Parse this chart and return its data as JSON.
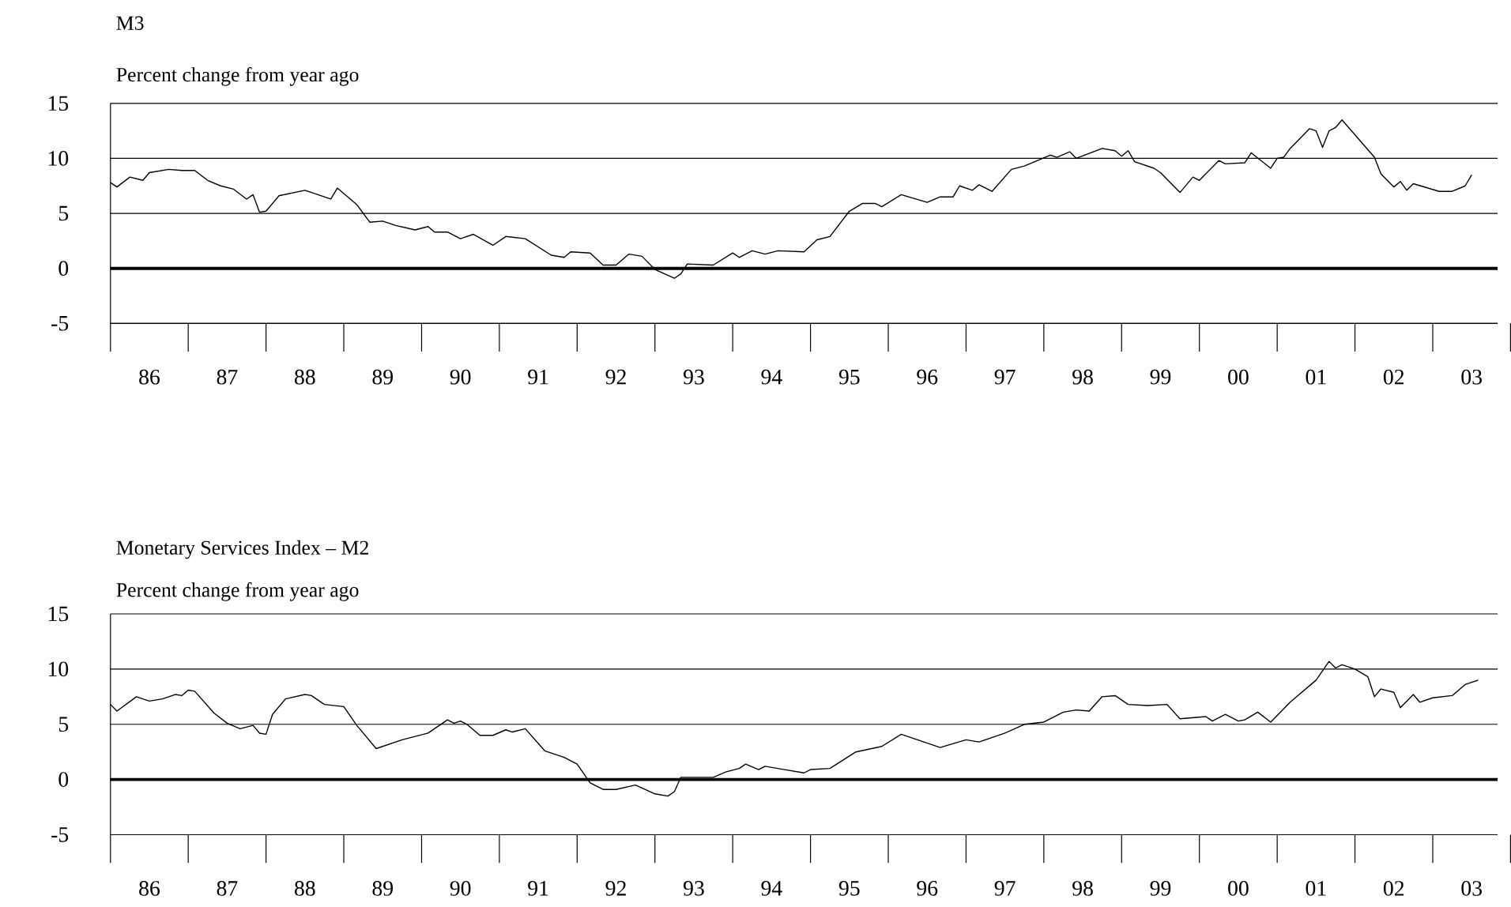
{
  "chart_data": [
    {
      "type": "line",
      "title": "M3",
      "subtitle": "Percent change from year ago",
      "color": "#000000",
      "grid": "y",
      "marker": "none",
      "line_style": "solid",
      "xlim": [
        "1986-01",
        "2003-11"
      ],
      "ylim": [
        -5,
        15
      ],
      "yticks": [
        -5,
        0,
        5,
        10,
        15
      ],
      "xticks": [
        {
          "value": "1986-07",
          "label": "86"
        },
        {
          "value": "1987-07",
          "label": "87"
        },
        {
          "value": "1988-07",
          "label": "88"
        },
        {
          "value": "1989-07",
          "label": "89"
        },
        {
          "value": "1990-07",
          "label": "90"
        },
        {
          "value": "1991-07",
          "label": "91"
        },
        {
          "value": "1992-07",
          "label": "92"
        },
        {
          "value": "1993-07",
          "label": "93"
        },
        {
          "value": "1994-07",
          "label": "94"
        },
        {
          "value": "1995-07",
          "label": "95"
        },
        {
          "value": "1996-07",
          "label": "96"
        },
        {
          "value": "1997-07",
          "label": "97"
        },
        {
          "value": "1998-07",
          "label": "98"
        },
        {
          "value": "1999-07",
          "label": "99"
        },
        {
          "value": "2000-07",
          "label": "00"
        },
        {
          "value": "2001-07",
          "label": "01"
        },
        {
          "value": "2002-07",
          "label": "02"
        },
        {
          "value": "2003-07",
          "label": "03"
        }
      ],
      "ref_lines": [
        {
          "axis": "y",
          "value": 0
        }
      ],
      "x": [
        "1986-01",
        "1986-02",
        "1986-04",
        "1986-06",
        "1986-07",
        "1986-10",
        "1986-12",
        "1987-02",
        "1987-04",
        "1987-06",
        "1987-08",
        "1987-10",
        "1987-11",
        "1987-12",
        "1988-01",
        "1988-03",
        "1988-07",
        "1988-11",
        "1988-12",
        "1989-03",
        "1989-05",
        "1989-07",
        "1989-09",
        "1989-12",
        "1990-02",
        "1990-03",
        "1990-05",
        "1990-07",
        "1990-09",
        "1990-12",
        "1991-02",
        "1991-05",
        "1991-09",
        "1991-11",
        "1991-12",
        "1992-03",
        "1992-05",
        "1992-07",
        "1992-09",
        "1992-11",
        "1993-01",
        "1993-04",
        "1993-05",
        "1993-06",
        "1993-10",
        "1994-01",
        "1994-02",
        "1994-04",
        "1994-06",
        "1994-08",
        "1994-12",
        "1995-02",
        "1995-04",
        "1995-07",
        "1995-09",
        "1995-11",
        "1995-12",
        "1996-03",
        "1996-07",
        "1996-09",
        "1996-11",
        "1996-12",
        "1997-02",
        "1997-03",
        "1997-05",
        "1997-08",
        "1997-10",
        "1998-02",
        "1998-03",
        "1998-05",
        "1998-06",
        "1998-10",
        "1998-12",
        "1999-01",
        "1999-02",
        "1999-03",
        "1999-06",
        "1999-07",
        "1999-10",
        "1999-12",
        "2000-01",
        "2000-04",
        "2000-05",
        "2000-08",
        "2000-09",
        "2000-12",
        "2001-01",
        "2001-02",
        "2001-03",
        "2001-06",
        "2001-07",
        "2001-08",
        "2001-09",
        "2001-10",
        "2001-11",
        "2002-04",
        "2002-05",
        "2002-07",
        "2002-08",
        "2002-09",
        "2002-10",
        "2003-02",
        "2003-04",
        "2003-06",
        "2003-07"
      ],
      "values": [
        7.8,
        7.4,
        8.3,
        8.0,
        8.7,
        9.0,
        8.9,
        8.9,
        8.0,
        7.5,
        7.2,
        6.3,
        6.7,
        5.1,
        5.2,
        6.6,
        7.1,
        6.3,
        7.3,
        5.8,
        4.2,
        4.3,
        3.9,
        3.5,
        3.8,
        3.3,
        3.3,
        2.7,
        3.1,
        2.1,
        2.9,
        2.7,
        1.2,
        1.0,
        1.5,
        1.4,
        0.3,
        0.3,
        1.3,
        1.1,
        -0.1,
        -0.9,
        -0.5,
        0.4,
        0.3,
        1.4,
        1.0,
        1.6,
        1.3,
        1.6,
        1.5,
        2.6,
        2.9,
        5.2,
        5.9,
        5.9,
        5.6,
        6.7,
        6.0,
        6.5,
        6.5,
        7.5,
        7.1,
        7.6,
        7.0,
        9.0,
        9.3,
        10.3,
        10.1,
        10.6,
        10.0,
        10.9,
        10.7,
        10.2,
        10.7,
        9.7,
        9.1,
        8.7,
        6.9,
        8.3,
        8.0,
        9.8,
        9.5,
        9.6,
        10.5,
        9.1,
        10.0,
        10.1,
        10.9,
        12.7,
        12.5,
        11.0,
        12.5,
        12.8,
        13.5,
        10.1,
        8.6,
        7.4,
        7.9,
        7.1,
        7.7,
        7.0,
        7.0,
        7.5,
        8.5
      ]
    },
    {
      "type": "line",
      "title": "Monetary Services Index – M2",
      "subtitle": "Percent change from year ago",
      "color": "#000000",
      "grid": "y",
      "marker": "none",
      "line_style": "solid",
      "xlim": [
        "1986-01",
        "2003-11"
      ],
      "ylim": [
        -5,
        15
      ],
      "yticks": [
        -5,
        0,
        5,
        10,
        15
      ],
      "xticks": [
        {
          "value": "1986-07",
          "label": "86"
        },
        {
          "value": "1987-07",
          "label": "87"
        },
        {
          "value": "1988-07",
          "label": "88"
        },
        {
          "value": "1989-07",
          "label": "89"
        },
        {
          "value": "1990-07",
          "label": "90"
        },
        {
          "value": "1991-07",
          "label": "91"
        },
        {
          "value": "1992-07",
          "label": "92"
        },
        {
          "value": "1993-07",
          "label": "93"
        },
        {
          "value": "1994-07",
          "label": "94"
        },
        {
          "value": "1995-07",
          "label": "95"
        },
        {
          "value": "1996-07",
          "label": "96"
        },
        {
          "value": "1997-07",
          "label": "97"
        },
        {
          "value": "1998-07",
          "label": "98"
        },
        {
          "value": "1999-07",
          "label": "99"
        },
        {
          "value": "2000-07",
          "label": "00"
        },
        {
          "value": "2001-07",
          "label": "01"
        },
        {
          "value": "2002-07",
          "label": "02"
        },
        {
          "value": "2003-07",
          "label": "03"
        }
      ],
      "ref_lines": [
        {
          "axis": "y",
          "value": 0
        }
      ],
      "x": [
        "1986-01",
        "1986-02",
        "1986-05",
        "1986-07",
        "1986-09",
        "1986-11",
        "1986-12",
        "1987-01",
        "1987-02",
        "1987-05",
        "1987-07",
        "1987-09",
        "1987-11",
        "1987-12",
        "1988-01",
        "1988-02",
        "1988-04",
        "1988-07",
        "1988-08",
        "1988-10",
        "1989-01",
        "1989-03",
        "1989-06",
        "1989-10",
        "1990-02",
        "1990-05",
        "1990-06",
        "1990-07",
        "1990-08",
        "1990-10",
        "1990-12",
        "1991-02",
        "1991-03",
        "1991-05",
        "1991-08",
        "1991-11",
        "1992-01",
        "1992-03",
        "1992-05",
        "1992-07",
        "1992-10",
        "1993-01",
        "1993-03",
        "1993-04",
        "1993-05",
        "1993-10",
        "1993-12",
        "1994-02",
        "1994-03",
        "1994-05",
        "1994-06",
        "1994-09",
        "1994-12",
        "1995-01",
        "1995-04",
        "1995-08",
        "1995-12",
        "1996-03",
        "1996-06",
        "1996-09",
        "1997-01",
        "1997-03",
        "1997-07",
        "1997-10",
        "1998-01",
        "1998-04",
        "1998-06",
        "1998-08",
        "1998-10",
        "1998-12",
        "1999-02",
        "1999-05",
        "1999-08",
        "1999-10",
        "2000-02",
        "2000-03",
        "2000-05",
        "2000-07",
        "2000-08",
        "2000-10",
        "2000-12",
        "2001-03",
        "2001-07",
        "2001-09",
        "2001-10",
        "2001-11",
        "2002-01",
        "2002-03",
        "2002-04",
        "2002-05",
        "2002-07",
        "2002-08",
        "2002-10",
        "2002-11",
        "2003-01",
        "2003-04",
        "2003-06",
        "2003-08"
      ],
      "values": [
        6.8,
        6.2,
        7.5,
        7.1,
        7.3,
        7.7,
        7.6,
        8.1,
        8.0,
        6.0,
        5.1,
        4.6,
        4.9,
        4.2,
        4.1,
        5.9,
        7.3,
        7.7,
        7.6,
        6.8,
        6.6,
        4.9,
        2.8,
        3.6,
        4.2,
        5.4,
        5.1,
        5.3,
        5.0,
        4.0,
        4.0,
        4.5,
        4.3,
        4.6,
        2.6,
        2.0,
        1.4,
        -0.3,
        -0.9,
        -0.9,
        -0.5,
        -1.3,
        -1.5,
        -1.1,
        0.2,
        0.2,
        0.7,
        1.0,
        1.4,
        0.9,
        1.2,
        0.9,
        0.6,
        0.9,
        1.0,
        2.5,
        3.0,
        4.1,
        3.5,
        2.9,
        3.6,
        3.4,
        4.2,
        5.0,
        5.2,
        6.1,
        6.3,
        6.2,
        7.5,
        7.6,
        6.8,
        6.7,
        6.8,
        5.5,
        5.7,
        5.3,
        5.9,
        5.3,
        5.4,
        6.1,
        5.2,
        7.0,
        9.0,
        10.7,
        10.1,
        10.4,
        10.0,
        9.3,
        7.5,
        8.2,
        7.9,
        6.5,
        7.7,
        7.0,
        7.4,
        7.6,
        8.6,
        9.0
      ]
    }
  ]
}
